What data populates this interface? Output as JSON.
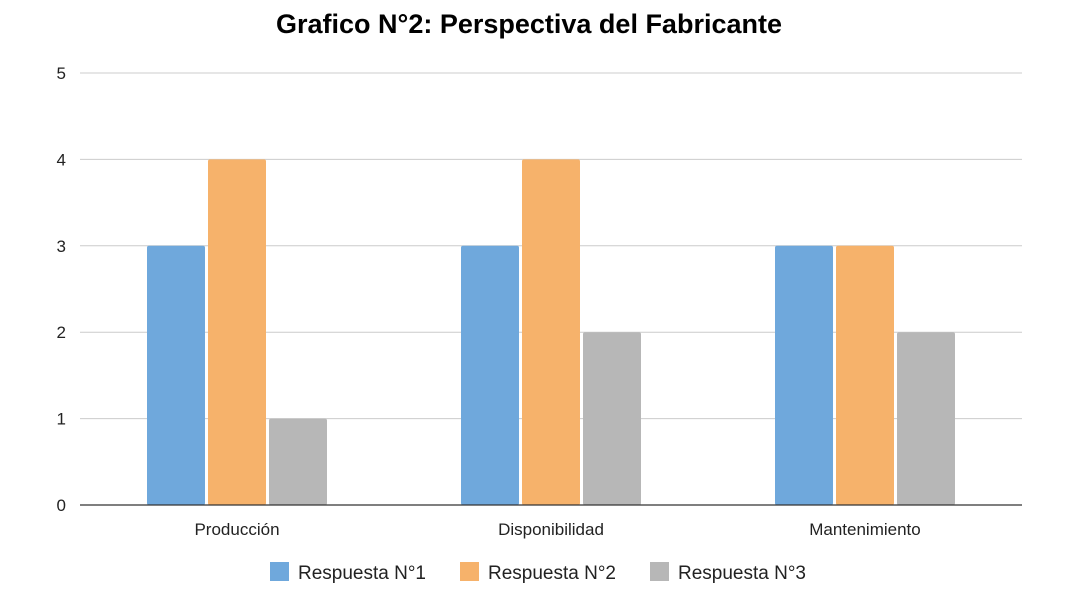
{
  "chart_data": {
    "type": "bar",
    "title": "Grafico N°2: Perspectiva del Fabricante",
    "categories": [
      "Producción",
      "Disponibilidad",
      "Mantenimiento"
    ],
    "series": [
      {
        "name": "Respuesta N°1",
        "color": "#6fa8dc",
        "values": [
          3,
          3,
          3
        ]
      },
      {
        "name": "Respuesta N°2",
        "color": "#f6b26b",
        "values": [
          4,
          4,
          3
        ]
      },
      {
        "name": "Respuesta N°3",
        "color": "#b7b7b7",
        "values": [
          1,
          2,
          2
        ]
      }
    ],
    "xlabel": "",
    "ylabel": "",
    "ylim": [
      0,
      5
    ],
    "yticks": [
      0,
      1,
      2,
      3,
      4,
      5
    ],
    "grid": true,
    "legend": "bottom"
  }
}
